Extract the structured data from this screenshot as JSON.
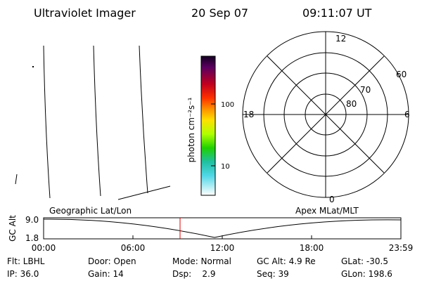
{
  "header": {
    "instrument": "Ultraviolet Imager",
    "date": "20 Sep 07",
    "time": "09:11:07 UT"
  },
  "colorbar": {
    "label": "photon cm⁻²s⁻¹",
    "ticks": [
      "100",
      "10"
    ]
  },
  "polar": {
    "mlt_labels": [
      "12",
      "18",
      "6",
      "0"
    ],
    "lat_labels": [
      "60",
      "70",
      "80"
    ]
  },
  "altitude_plot": {
    "left_label": "Geographic Lat/Lon",
    "right_label": "Apex MLat/MLT",
    "y_label": "GC Alt",
    "y_ticks": [
      "9.0",
      "1.8"
    ],
    "x_ticks": [
      "00:00",
      "06:00",
      "12:00",
      "18:00",
      "23:59"
    ]
  },
  "status": {
    "rows": [
      [
        "Flt: LBHL",
        "Door: Open",
        "Mode: Normal",
        "GC Alt: 4.9 Re",
        "GLat: -30.5"
      ],
      [
        "IP: 36.0",
        "Gain: 14",
        "Dsp:    2.9",
        "Seq: 39",
        "GLon: 198.6"
      ]
    ]
  }
}
